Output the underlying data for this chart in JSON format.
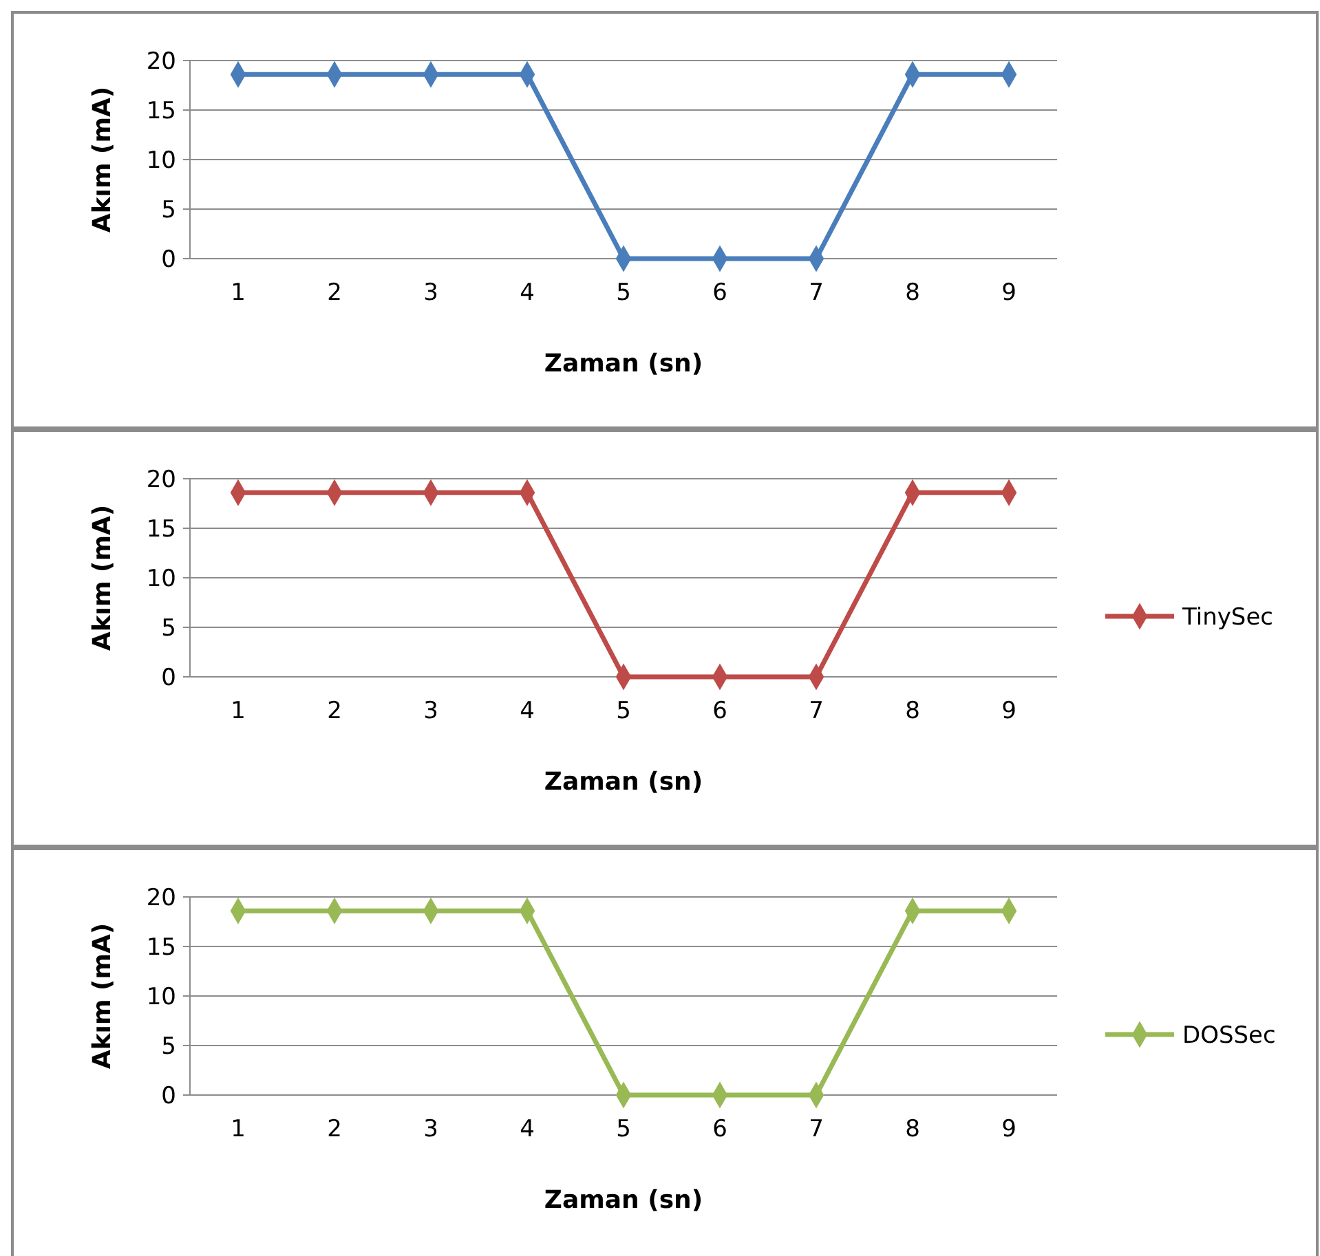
{
  "chart_data": [
    {
      "type": "line",
      "xlabel": "Zaman (sn)",
      "ylabel": "Akım (mA)",
      "categories": [
        "1",
        "2",
        "3",
        "4",
        "5",
        "6",
        "7",
        "8",
        "9"
      ],
      "ylim": [
        0,
        20
      ],
      "yticks": [
        0,
        5,
        10,
        15,
        20
      ],
      "grid": "y",
      "marker": "diamond",
      "series": [
        {
          "color": "#4a7ebb",
          "values": [
            18.6,
            18.6,
            18.6,
            18.6,
            0,
            0,
            0,
            18.6,
            18.6
          ]
        }
      ]
    },
    {
      "type": "line",
      "xlabel": "Zaman (sn)",
      "ylabel": "Akım (mA)",
      "categories": [
        "1",
        "2",
        "3",
        "4",
        "5",
        "6",
        "7",
        "8",
        "9"
      ],
      "ylim": [
        0,
        20
      ],
      "yticks": [
        0,
        5,
        10,
        15,
        20
      ],
      "grid": "y",
      "legend": "right",
      "marker": "diamond",
      "series": [
        {
          "name": "TinySec",
          "color": "#be4b48",
          "values": [
            18.6,
            18.6,
            18.6,
            18.6,
            0,
            0,
            0,
            18.6,
            18.6
          ]
        }
      ]
    },
    {
      "type": "line",
      "xlabel": "Zaman (sn)",
      "ylabel": "Akım (mA)",
      "categories": [
        "1",
        "2",
        "3",
        "4",
        "5",
        "6",
        "7",
        "8",
        "9"
      ],
      "ylim": [
        0,
        20
      ],
      "yticks": [
        0,
        5,
        10,
        15,
        20
      ],
      "grid": "y",
      "legend": "right",
      "marker": "diamond",
      "series": [
        {
          "name": "DOSSec",
          "color": "#98b954",
          "values": [
            18.6,
            18.6,
            18.6,
            18.6,
            0,
            0,
            0,
            18.6,
            18.6
          ]
        }
      ]
    }
  ]
}
